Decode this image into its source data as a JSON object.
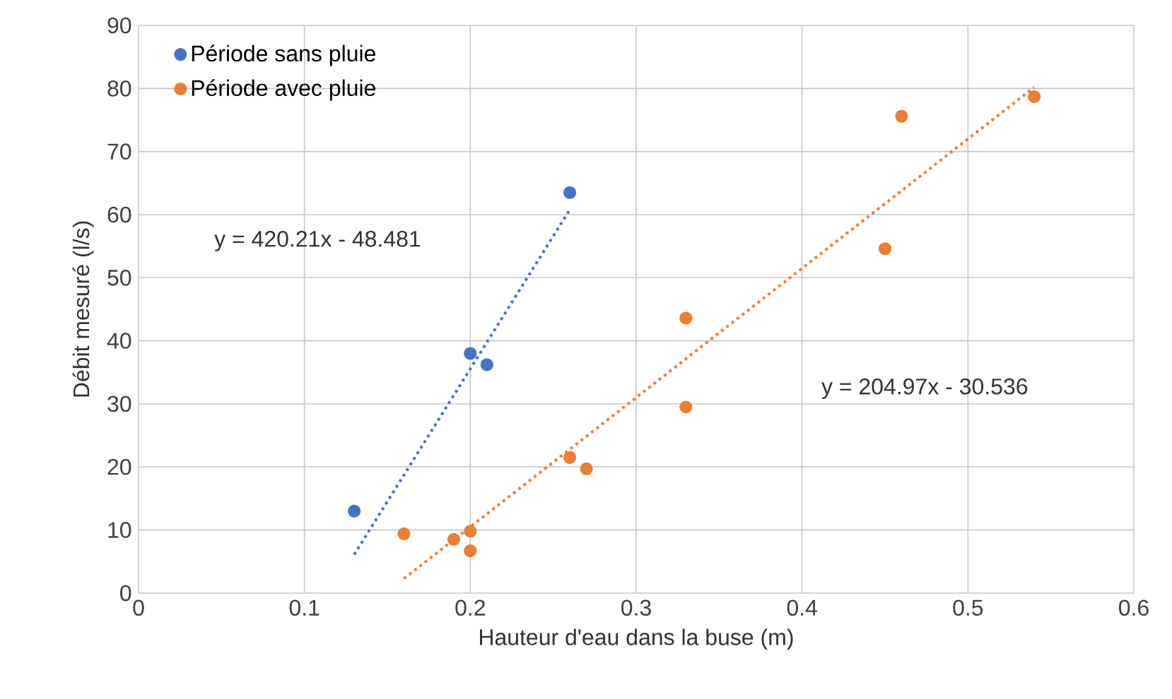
{
  "chart_data": {
    "type": "scatter",
    "xlabel": "Hauteur d'eau dans la buse (m)",
    "ylabel": "Débit mesuré (l/s)",
    "xlim": [
      0,
      0.6
    ],
    "ylim": [
      0,
      90
    ],
    "xticks": [
      0,
      0.1,
      0.2,
      0.3,
      0.4,
      0.5,
      0.6
    ],
    "yticks": [
      0,
      10,
      20,
      30,
      40,
      50,
      60,
      70,
      80,
      90
    ],
    "grid": true,
    "legend": "top left",
    "marker": "circle",
    "series": [
      {
        "name": "Période sans pluie",
        "color": "#4472c4",
        "x": [
          0.13,
          0.2,
          0.21,
          0.26
        ],
        "values": [
          13,
          38,
          36.2,
          63.5
        ]
      },
      {
        "name": "Période avec pluie",
        "color": "#ed7d31",
        "x": [
          0.16,
          0.19,
          0.2,
          0.2,
          0.26,
          0.27,
          0.33,
          0.33,
          0.45,
          0.46,
          0.54
        ],
        "values": [
          9.4,
          8.5,
          9.8,
          6.7,
          21.5,
          19.7,
          43.6,
          29.5,
          54.6,
          75.6,
          78.7
        ]
      },
      {
        "type": "line",
        "line_style": "dotted",
        "marker": "none",
        "color": "#4472c4",
        "x": [
          0.13,
          0.26
        ],
        "values": [
          6.1,
          60.8
        ]
      },
      {
        "type": "line",
        "line_style": "dotted",
        "marker": "none",
        "color": "#ed7d31",
        "x": [
          0.16,
          0.54
        ],
        "values": [
          2.3,
          80.2
        ]
      }
    ],
    "annotations": [
      "y = 420.21x - 48.481",
      "y = 204.97x - 30.536"
    ]
  }
}
